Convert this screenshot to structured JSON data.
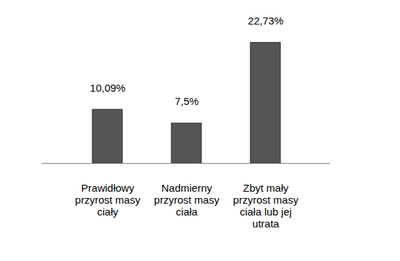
{
  "chart_data": {
    "type": "bar",
    "categories": [
      "Prawidłowy przyrost masy ciały",
      "Nadmierny przyrost masy ciała",
      "Zbyt mały przyrost masy ciała lub jej utrata"
    ],
    "values": [
      10.09,
      7.5,
      22.73
    ],
    "value_labels": [
      "10,09%",
      "7,5%",
      "22,73%"
    ],
    "color": "#555555",
    "data_labels": true,
    "tick_labels": false,
    "grid": false
  }
}
